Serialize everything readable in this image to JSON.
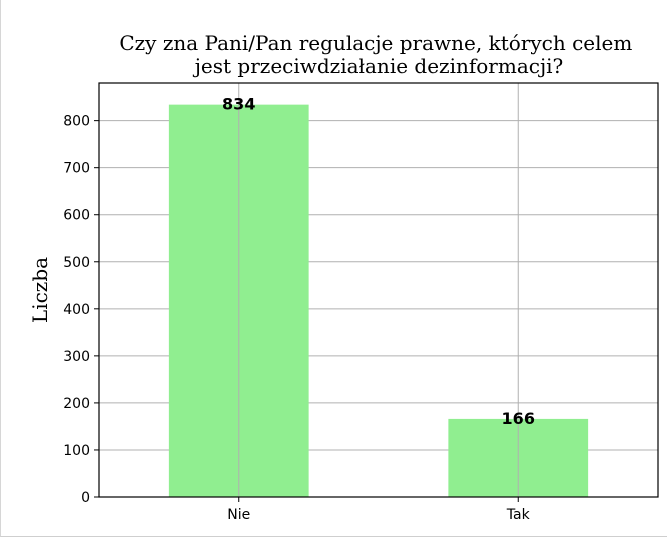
{
  "chart_data": {
    "type": "bar",
    "title": "Czy zna Pani/Pan regulacje prawne, których celem\njest przeciwdziałanie dezinformacji?",
    "xlabel": "",
    "ylabel": "Liczba",
    "categories": [
      "Nie",
      "Tak"
    ],
    "values": [
      834,
      166
    ],
    "value_labels": [
      "834",
      "166"
    ],
    "ylim": [
      0,
      880
    ],
    "yticks": [
      0,
      100,
      200,
      300,
      400,
      500,
      600,
      700,
      800
    ],
    "grid": true,
    "legend": false,
    "bar_color": "#90ee90",
    "grid_color": "#b0b0b0"
  }
}
